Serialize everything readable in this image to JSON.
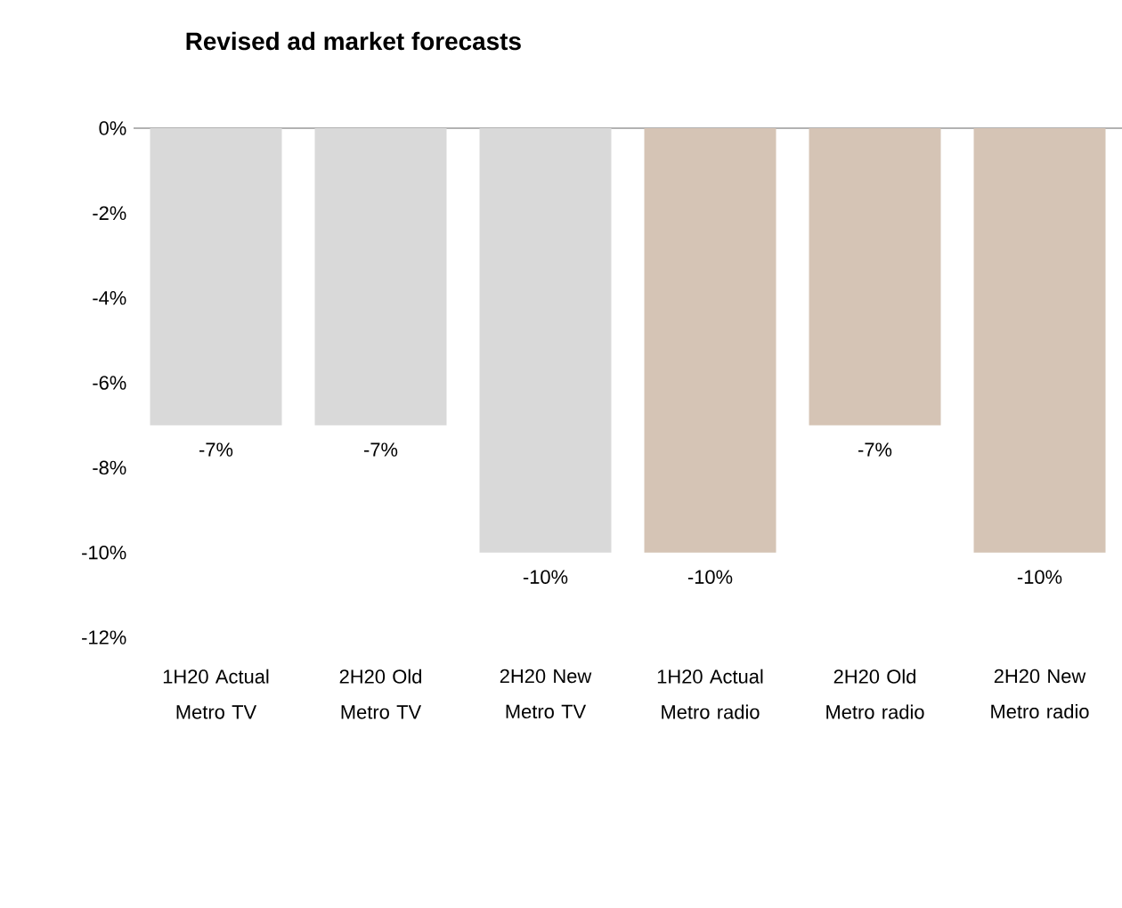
{
  "chart_data": {
    "type": "bar",
    "title": "Revised ad market forecasts",
    "categories": [
      "1H20 Actual Metro TV",
      "2H20 Old Metro TV",
      "2H20 New Metro TV",
      "1H20 Actual Metro radio",
      "2H20 Old Metro radio",
      "2H20 New Metro radio"
    ],
    "values": [
      -7,
      -7,
      -10,
      -10,
      -7,
      -10
    ],
    "colors": [
      "#d9d9d9",
      "#d9d9d9",
      "#d9d9d9",
      "#d5c4b5",
      "#d5c4b5",
      "#d5c4b5"
    ],
    "value_labels": [
      "-7%",
      "-7%",
      "-10%",
      "-10%",
      "-7%",
      "-10%"
    ],
    "ylim": [
      -12,
      0
    ],
    "yticks": [
      {
        "value": 0,
        "label": "0%"
      },
      {
        "value": -2,
        "label": "-2%"
      },
      {
        "value": -4,
        "label": "-4%"
      },
      {
        "value": -6,
        "label": "-6%"
      },
      {
        "value": -8,
        "label": "-8%"
      },
      {
        "value": -10,
        "label": "-10%"
      },
      {
        "value": -12,
        "label": "-12%"
      }
    ],
    "grid": false
  }
}
